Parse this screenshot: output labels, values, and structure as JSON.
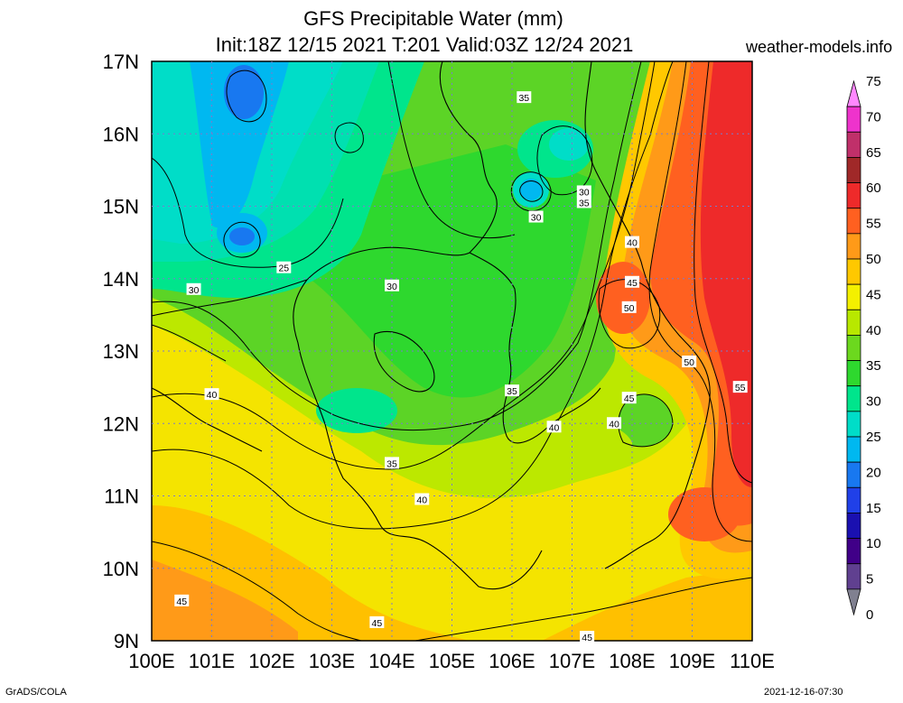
{
  "title": "GFS Precipitable Water (mm)",
  "subtitle": "Init:18Z 12/15 2021 T:201 Valid:03Z 12/24 2021",
  "site": "weather-models.info",
  "credit": "GrADS/COLA",
  "timestamp": "2021-12-16-07:30",
  "map": {
    "lat_labels": [
      "17N",
      "16N",
      "15N",
      "14N",
      "13N",
      "12N",
      "11N",
      "10N",
      "9N"
    ],
    "lon_labels": [
      "100E",
      "101E",
      "102E",
      "103E",
      "104E",
      "105E",
      "106E",
      "107E",
      "108E",
      "109E",
      "110E"
    ],
    "lat_range": [
      9,
      17
    ],
    "lon_range": [
      100,
      110
    ],
    "contour_labels": [
      {
        "text": "35",
        "lon": 106.2,
        "lat": 16.5
      },
      {
        "text": "30",
        "lon": 107.2,
        "lat": 15.2
      },
      {
        "text": "35",
        "lon": 107.2,
        "lat": 15.05
      },
      {
        "text": "30",
        "lon": 106.4,
        "lat": 14.85
      },
      {
        "text": "40",
        "lon": 108.0,
        "lat": 14.5
      },
      {
        "text": "25",
        "lon": 102.2,
        "lat": 14.15
      },
      {
        "text": "45",
        "lon": 108.0,
        "lat": 13.95
      },
      {
        "text": "30",
        "lon": 100.7,
        "lat": 13.85
      },
      {
        "text": "30",
        "lon": 104.0,
        "lat": 13.9
      },
      {
        "text": "50",
        "lon": 107.95,
        "lat": 13.6
      },
      {
        "text": "50",
        "lon": 108.95,
        "lat": 12.85
      },
      {
        "text": "55",
        "lon": 109.8,
        "lat": 12.5
      },
      {
        "text": "35",
        "lon": 106.0,
        "lat": 12.45
      },
      {
        "text": "45",
        "lon": 107.95,
        "lat": 12.35
      },
      {
        "text": "40",
        "lon": 101.0,
        "lat": 12.4
      },
      {
        "text": "40",
        "lon": 107.7,
        "lat": 12.0
      },
      {
        "text": "40",
        "lon": 106.7,
        "lat": 11.95
      },
      {
        "text": "35",
        "lon": 104.0,
        "lat": 11.45
      },
      {
        "text": "40",
        "lon": 104.5,
        "lat": 10.95
      },
      {
        "text": "45",
        "lon": 100.5,
        "lat": 9.55
      },
      {
        "text": "45",
        "lon": 103.75,
        "lat": 9.25
      },
      {
        "text": "45",
        "lon": 107.25,
        "lat": 9.05
      }
    ]
  },
  "colorbar": {
    "labels": [
      "75",
      "70",
      "65",
      "60",
      "55",
      "50",
      "45",
      "40",
      "35",
      "30",
      "25",
      "20",
      "15",
      "10",
      "5",
      "0"
    ],
    "colors": [
      "#ff88ff",
      "#ee33cc",
      "#c0306a",
      "#a02828",
      "#ee2a2a",
      "#ff6020",
      "#ff9a18",
      "#ffc800",
      "#f4f000",
      "#b8e800",
      "#6cd81e",
      "#2ed82e",
      "#00e58c",
      "#00ddc8",
      "#00b8f0",
      "#1878f0",
      "#2040e8",
      "#1a10b0",
      "#400088",
      "#604090",
      "#808090"
    ]
  }
}
